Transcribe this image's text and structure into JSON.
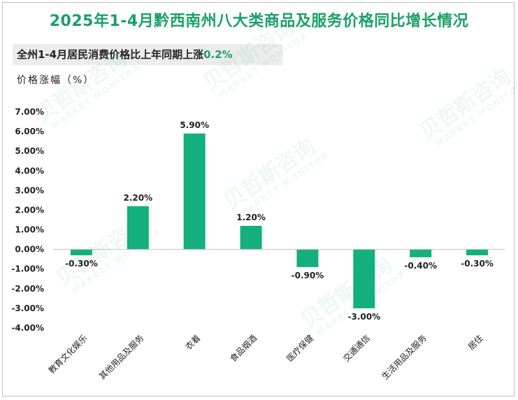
{
  "title": "2025年1-4月黔西南州八大类商品及服务价格同比增长情况",
  "subtitle": {
    "text": "全州1-4月居民消费价格比上年同期上涨",
    "highlight": "0.2%"
  },
  "watermark": {
    "brand": "贝哲斯咨询",
    "tagline": "MARKET MONITOR"
  },
  "colors": {
    "bar": "#13b07d",
    "title": "#1aa068",
    "zero_line": "#bfbfbf"
  },
  "chart_data": {
    "type": "bar",
    "ylabel": "价格涨幅（%）",
    "categories": [
      "教育文化娱乐",
      "其他用品及服务",
      "衣着",
      "食品烟酒",
      "医疗保健",
      "交通通信",
      "生活用品及服务",
      "居住"
    ],
    "values": [
      -0.3,
      2.2,
      5.9,
      1.2,
      -0.9,
      -3.0,
      -0.4,
      -0.3
    ],
    "data_labels": [
      "-0.30%",
      "2.20%",
      "5.90%",
      "1.20%",
      "-0.90%",
      "-3.00%",
      "-0.40%",
      "-0.30%"
    ],
    "ylim": [
      -4,
      7
    ],
    "yticks": [
      7,
      6,
      5,
      4,
      3,
      2,
      1,
      0,
      -1,
      -2,
      -3,
      -4
    ],
    "ytick_labels": [
      "7.00%",
      "6.00%",
      "5.00%",
      "4.00%",
      "3.00%",
      "2.00%",
      "1.00%",
      "0.00%",
      "-1.00%",
      "-2.00%",
      "-3.00%",
      "-4.00%"
    ],
    "grid": false,
    "legend": "none"
  }
}
